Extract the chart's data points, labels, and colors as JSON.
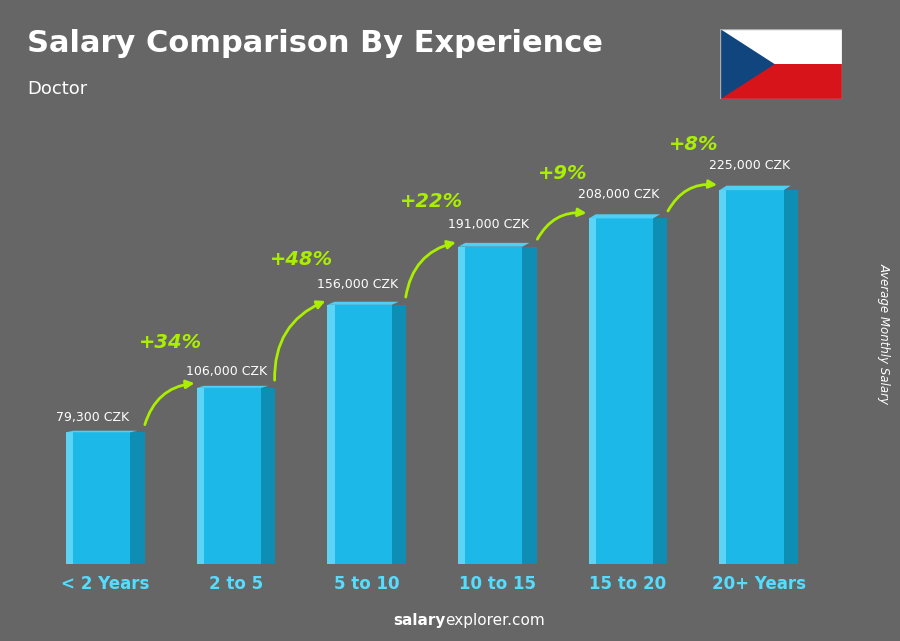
{
  "title": "Salary Comparison By Experience",
  "subtitle": "Doctor",
  "categories": [
    "< 2 Years",
    "2 to 5",
    "5 to 10",
    "10 to 15",
    "15 to 20",
    "20+ Years"
  ],
  "values": [
    79300,
    106000,
    156000,
    191000,
    208000,
    225000
  ],
  "value_labels": [
    "79,300 CZK",
    "106,000 CZK",
    "156,000 CZK",
    "191,000 CZK",
    "208,000 CZK",
    "225,000 CZK"
  ],
  "pct_changes": [
    "+34%",
    "+48%",
    "+22%",
    "+9%",
    "+8%"
  ],
  "bar_color_main": "#1BB8E8",
  "bar_color_left": "#5BD4F5",
  "bar_color_dark": "#0E8EB5",
  "bar_color_top": "#4ECFF5",
  "background_color": "#666666",
  "title_color": "#FFFFFF",
  "subtitle_color": "#FFFFFF",
  "label_color": "#FFFFFF",
  "xticklabel_color": "#55DDFF",
  "pct_color": "#AAEE00",
  "ylabel": "Average Monthly Salary",
  "footer_salary": "salary",
  "footer_rest": "explorer.com",
  "ylim_max": 270000,
  "bar_width": 0.6,
  "flag_colors": {
    "white": "#FFFFFF",
    "red": "#D7141A",
    "blue": "#11457E"
  },
  "value_label_fontsize": 9,
  "pct_fontsize": 14,
  "title_fontsize": 22,
  "subtitle_fontsize": 13,
  "xlabel_fontsize": 12,
  "footer_fontsize": 11
}
